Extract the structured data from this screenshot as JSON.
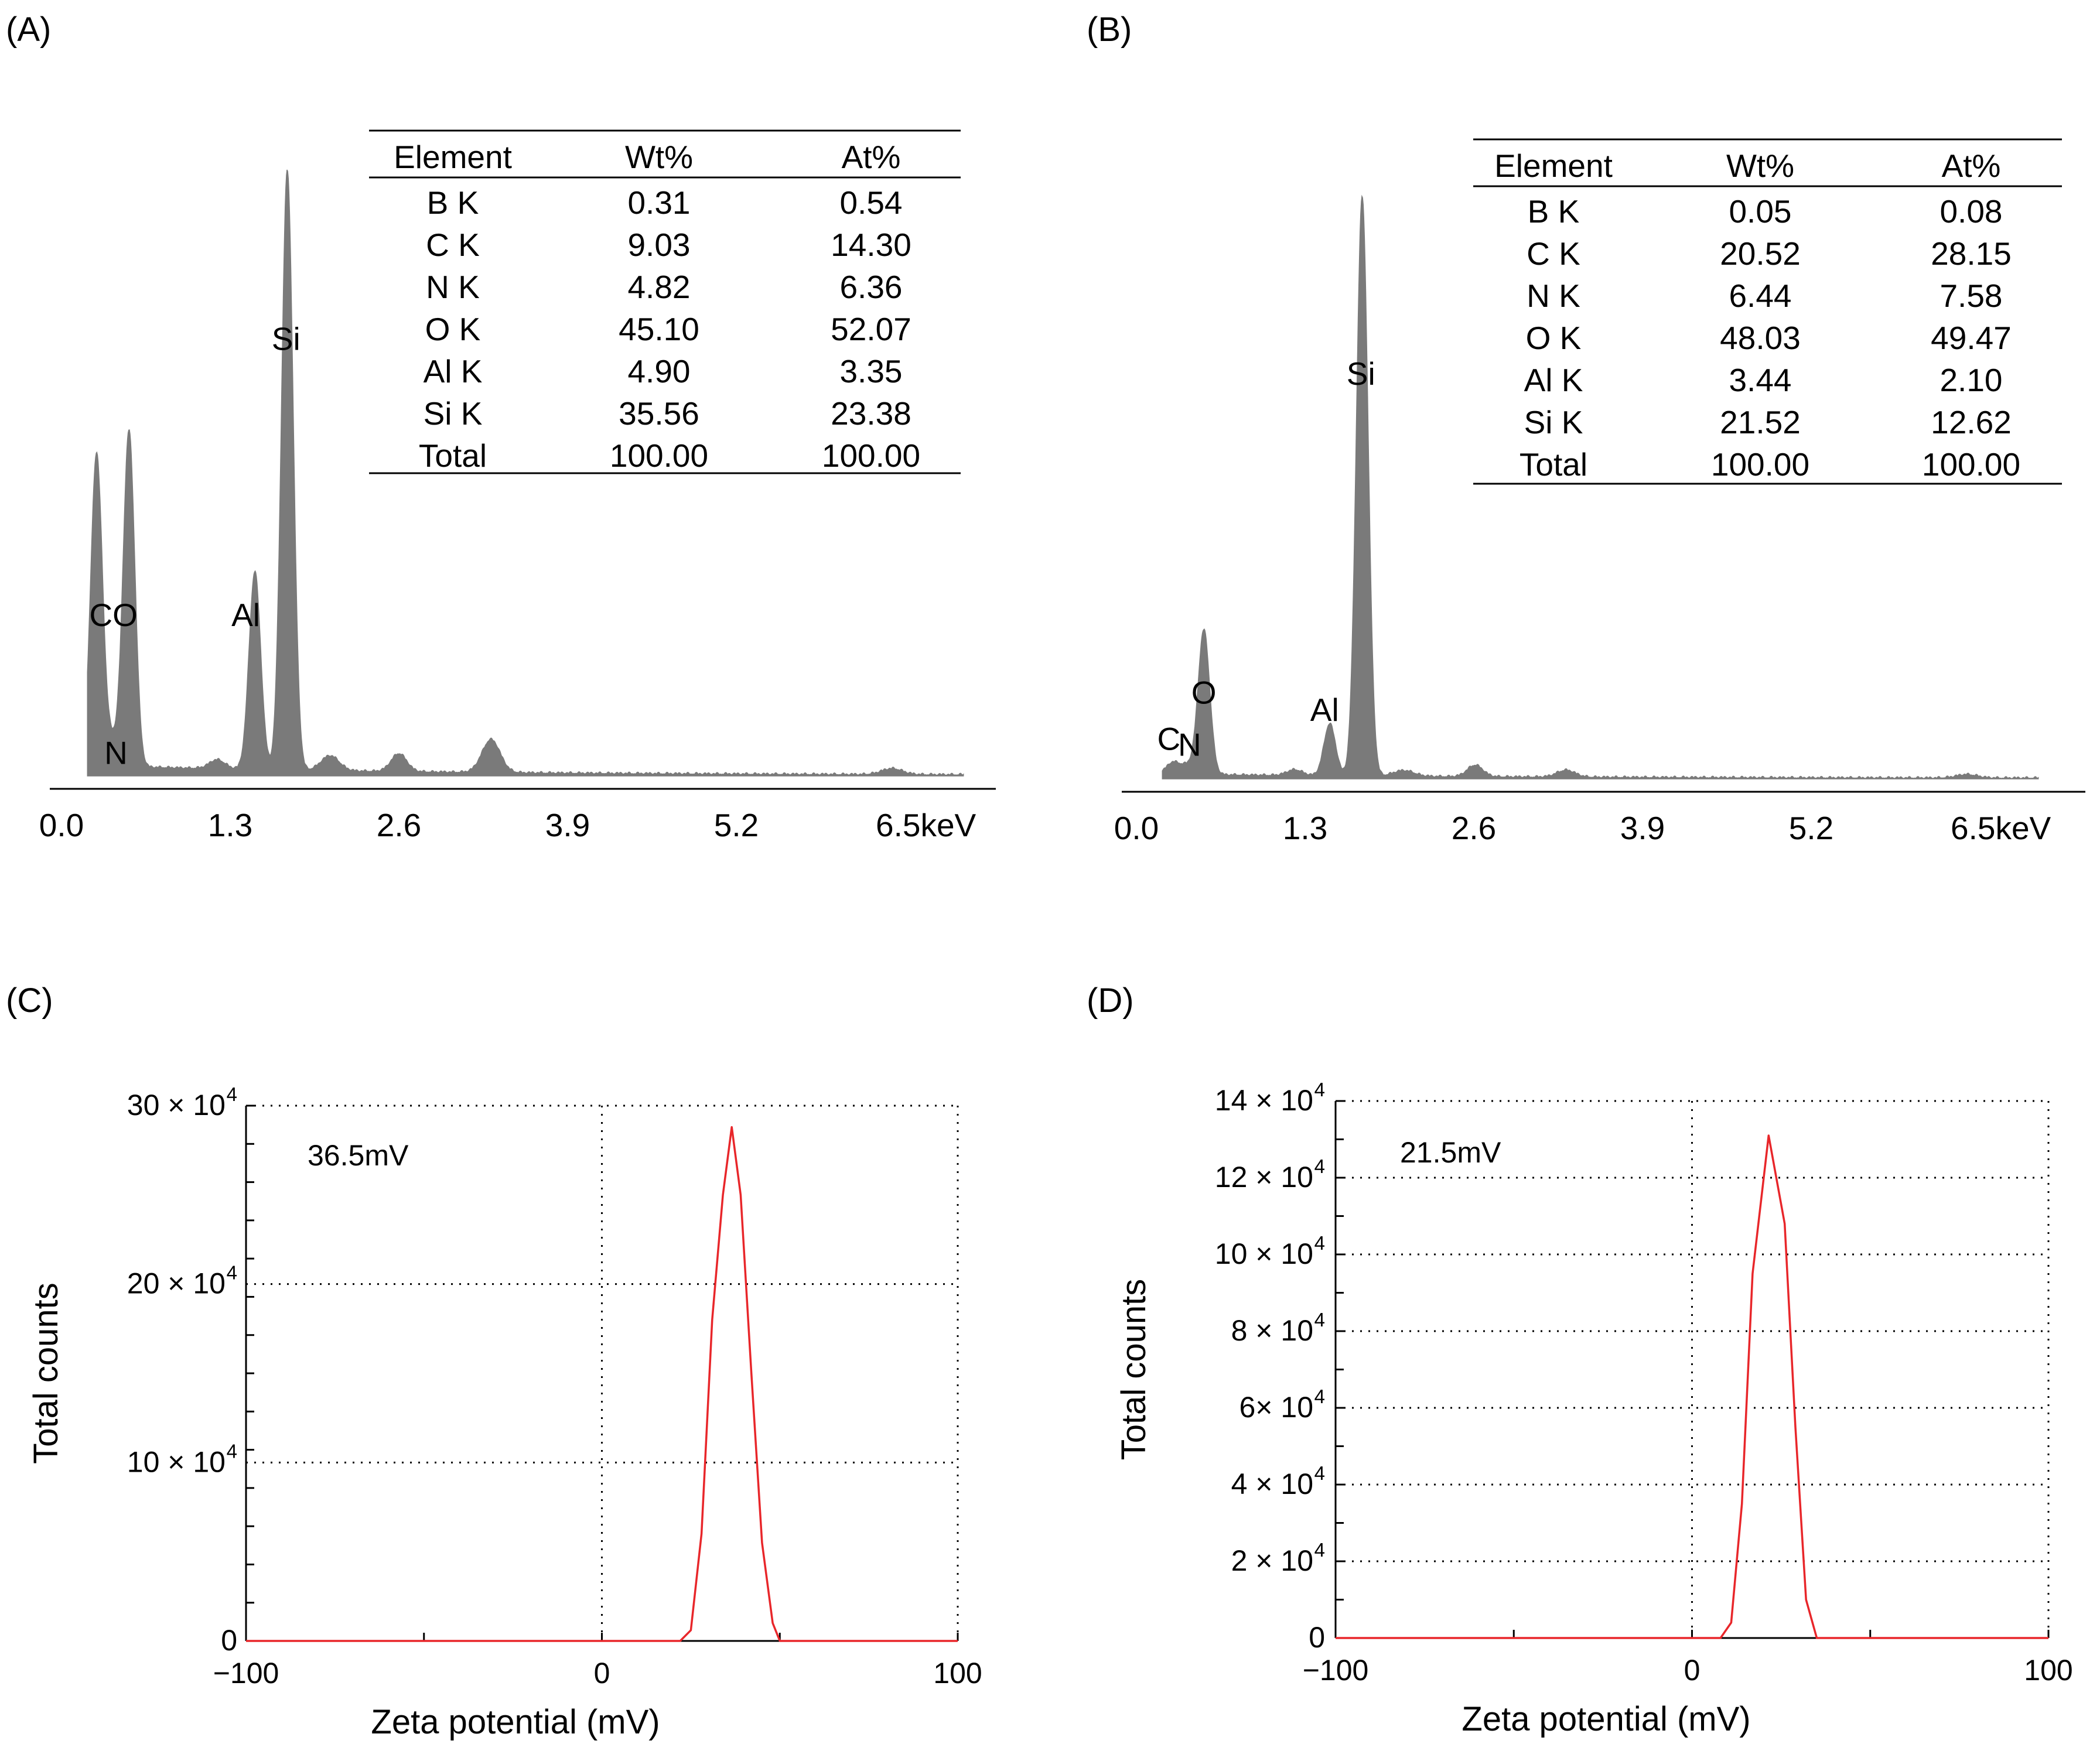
{
  "chart_data": [
    {
      "id": "A",
      "panel_label": "(A)",
      "type": "area",
      "title": "",
      "xlabel": "",
      "ylabel": "",
      "x_ticks": [
        0.0,
        1.3,
        2.6,
        3.9,
        5.2,
        6.5
      ],
      "x_tick_labels": [
        "0.0",
        "1.3",
        "2.6",
        "3.9",
        "5.2",
        "6.5keV"
      ],
      "xlim": [
        0.0,
        7.0
      ],
      "ylim": [
        0,
        100
      ],
      "peaks": [
        {
          "label": "C",
          "x": 0.27,
          "height": 52,
          "width": 0.045
        },
        {
          "label": "N",
          "x": 0.39,
          "height": 4,
          "width": 0.05
        },
        {
          "label": "O",
          "x": 0.52,
          "height": 56,
          "width": 0.045
        },
        {
          "label": "Al",
          "x": 1.49,
          "height": 33,
          "width": 0.045
        },
        {
          "label": "Si",
          "x": 1.74,
          "height": 100,
          "width": 0.045
        },
        {
          "label": "",
          "x": 1.2,
          "height": 1.5,
          "width": 0.06
        },
        {
          "label": "",
          "x": 2.07,
          "height": 2.5,
          "width": 0.07
        },
        {
          "label": "",
          "x": 2.6,
          "height": 3,
          "width": 0.06
        },
        {
          "label": "",
          "x": 3.31,
          "height": 5.5,
          "width": 0.07
        },
        {
          "label": "",
          "x": 6.4,
          "height": 1,
          "width": 0.08
        }
      ],
      "baseline": 1.8,
      "peak_labels": [
        {
          "text": "CO",
          "x": 0.4,
          "y": 25
        },
        {
          "text": "N",
          "x": 0.42,
          "y": 2
        },
        {
          "text": "Al",
          "x": 1.42,
          "y": 25
        },
        {
          "text": "Si",
          "x": 1.73,
          "y": 71
        }
      ],
      "table": {
        "headers": [
          "Element",
          "Wt%",
          "At%"
        ],
        "rows": [
          [
            "B K",
            "0.31",
            "0.54"
          ],
          [
            "C K",
            "9.03",
            "14.30"
          ],
          [
            "N K",
            "4.82",
            "6.36"
          ],
          [
            "O K",
            "45.10",
            "52.07"
          ],
          [
            "Al K",
            "4.90",
            "3.35"
          ],
          [
            "Si K",
            "35.56",
            "23.38"
          ],
          [
            "Total",
            "100.00",
            "100.00"
          ]
        ]
      },
      "color": "#7a7a7a"
    },
    {
      "id": "B",
      "panel_label": "(B)",
      "type": "area",
      "title": "",
      "xlabel": "",
      "ylabel": "",
      "x_ticks": [
        0.0,
        1.3,
        2.6,
        3.9,
        5.2,
        6.5
      ],
      "x_tick_labels": [
        "0.0",
        "1.3",
        "2.6",
        "3.9",
        "5.2",
        "6.5keV"
      ],
      "xlim": [
        0.0,
        7.2
      ],
      "ylim": [
        0,
        100
      ],
      "peaks": [
        {
          "label": "C",
          "x": 0.28,
          "height": 2,
          "width": 0.05
        },
        {
          "label": "N",
          "x": 0.39,
          "height": 1.5,
          "width": 0.05
        },
        {
          "label": "O",
          "x": 0.52,
          "height": 25,
          "width": 0.045
        },
        {
          "label": "Al",
          "x": 1.49,
          "height": 9,
          "width": 0.045
        },
        {
          "label": "Si",
          "x": 1.74,
          "height": 100,
          "width": 0.045
        },
        {
          "label": "",
          "x": 1.22,
          "height": 1,
          "width": 0.06
        },
        {
          "label": "",
          "x": 2.06,
          "height": 1,
          "width": 0.08
        },
        {
          "label": "",
          "x": 2.61,
          "height": 2,
          "width": 0.06
        },
        {
          "label": "",
          "x": 3.31,
          "height": 1.2,
          "width": 0.07
        },
        {
          "label": "",
          "x": 6.4,
          "height": 0.6,
          "width": 0.08
        }
      ],
      "baseline": 0.8,
      "peak_labels": [
        {
          "text": "O",
          "x": 0.52,
          "y": 13
        },
        {
          "text": "C",
          "x": 0.25,
          "y": 5
        },
        {
          "text": "N",
          "x": 0.41,
          "y": 4
        },
        {
          "text": "Al",
          "x": 1.45,
          "y": 10
        },
        {
          "text": "Si",
          "x": 1.73,
          "y": 68
        }
      ],
      "table": {
        "headers": [
          "Element",
          "Wt%",
          "At%"
        ],
        "rows": [
          [
            "B K",
            "0.05",
            "0.08"
          ],
          [
            "C K",
            "20.52",
            "28.15"
          ],
          [
            "N K",
            "6.44",
            "7.58"
          ],
          [
            "O K",
            "48.03",
            "49.47"
          ],
          [
            "Al K",
            "3.44",
            "2.10"
          ],
          [
            "Si K",
            "21.52",
            "12.62"
          ],
          [
            "Total",
            "100.00",
            "100.00"
          ]
        ]
      },
      "color": "#7a7a7a"
    },
    {
      "id": "C",
      "panel_label": "(C)",
      "type": "line",
      "title": "",
      "xlabel": "Zeta potential (mV)",
      "ylabel": "Total counts",
      "xlim": [
        -100,
        100
      ],
      "ylim": [
        0,
        300000
      ],
      "x_ticks": [
        -100,
        0,
        100
      ],
      "x_tick_labels": [
        "−100",
        "0",
        "100"
      ],
      "y_ticks": [
        0,
        100000,
        200000,
        300000
      ],
      "y_tick_labels": [
        {
          "base": "0",
          "exp": ""
        },
        {
          "base": "10 × 10",
          "exp": "4"
        },
        {
          "base": "20 × 10",
          "exp": "4"
        },
        {
          "base": "30 × 10",
          "exp": "4"
        }
      ],
      "annotation": "36.5mV",
      "x": [
        -100,
        22,
        25,
        28,
        31,
        34,
        36.5,
        39,
        42,
        45,
        48,
        50,
        100
      ],
      "y": [
        0,
        0,
        6000,
        60000,
        180000,
        250000,
        288000,
        250000,
        150000,
        55000,
        10000,
        0,
        0
      ],
      "color": "#e8262a"
    },
    {
      "id": "D",
      "panel_label": "(D)",
      "type": "line",
      "title": "",
      "xlabel": "Zeta potential (mV)",
      "ylabel": "Total counts",
      "xlim": [
        -100,
        100
      ],
      "ylim": [
        0,
        140000
      ],
      "x_ticks": [
        -100,
        0,
        100
      ],
      "x_tick_labels": [
        "−100",
        "0",
        "100"
      ],
      "y_ticks": [
        0,
        20000,
        40000,
        60000,
        80000,
        100000,
        120000,
        140000
      ],
      "y_tick_labels": [
        {
          "base": "0",
          "exp": ""
        },
        {
          "base": "2 × 10",
          "exp": "4"
        },
        {
          "base": "4 × 10",
          "exp": "4"
        },
        {
          "base": "6× 10",
          "exp": "4"
        },
        {
          "base": "8 × 10",
          "exp": "4"
        },
        {
          "base": "10 × 10",
          "exp": "4"
        },
        {
          "base": "12 × 10",
          "exp": "4"
        },
        {
          "base": "14 × 10",
          "exp": "4"
        }
      ],
      "annotation": "21.5mV",
      "x": [
        -100,
        8,
        11,
        14,
        17,
        21.5,
        26,
        29,
        32,
        35,
        100
      ],
      "y": [
        0,
        0,
        4000,
        35000,
        95000,
        131000,
        108000,
        55000,
        10000,
        0,
        0
      ],
      "color": "#e8262a"
    }
  ]
}
